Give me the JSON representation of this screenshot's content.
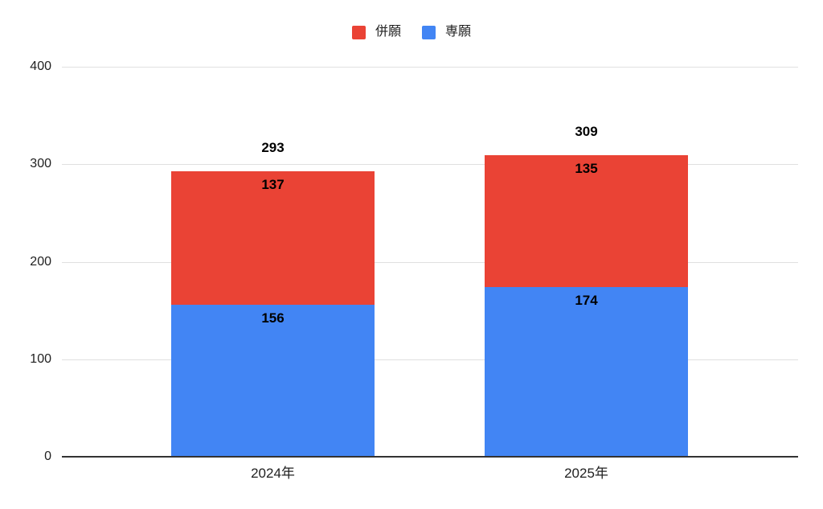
{
  "colors": {
    "heigan_red": "#EA4335",
    "sengan_blue": "#4285F4",
    "gridline": "#e0e0e0",
    "axis_line": "#333333",
    "label_text": "#000000",
    "tick_text": "#212121",
    "background": "#ffffff"
  },
  "chart_data": {
    "type": "bar",
    "stacked": true,
    "title": "",
    "xlabel": "",
    "ylabel": "",
    "categories": [
      "2024年",
      "2025年"
    ],
    "series": [
      {
        "name": "併願",
        "color": "#EA4335",
        "values": [
          137,
          135
        ]
      },
      {
        "name": "専願",
        "color": "#4285F4",
        "values": [
          156,
          174
        ]
      }
    ],
    "totals": [
      293,
      309
    ],
    "yticks": [
      0,
      100,
      200,
      300,
      400
    ],
    "ylim": [
      0,
      400
    ],
    "grid": true,
    "legend_position": "top",
    "stack_order_bottom_to_top": [
      "専願",
      "併願"
    ]
  }
}
